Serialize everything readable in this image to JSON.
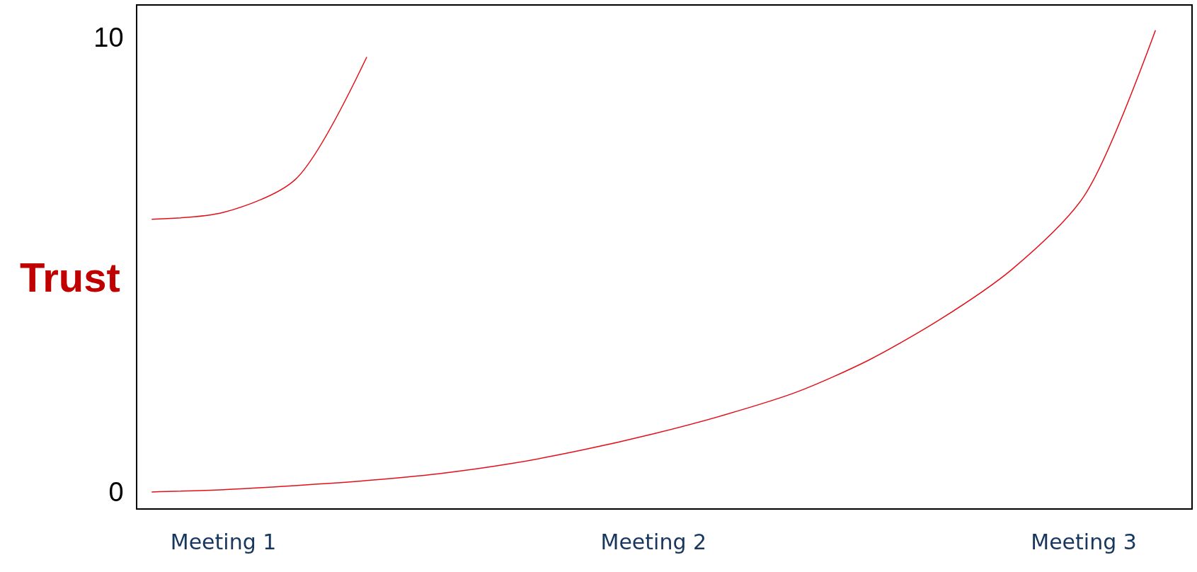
{
  "chart_data": {
    "type": "line",
    "ylabel": "Trust",
    "categories": [
      null,
      "Meeting 1",
      null,
      null,
      null,
      null,
      null,
      "Meeting 2",
      null,
      null,
      null,
      null,
      null,
      "Meeting 3",
      null
    ],
    "series": [
      {
        "color": "#e3101a",
        "values": [
          6.0,
          6.15,
          6.87,
          9.57,
          null,
          null,
          null,
          null,
          null,
          null,
          null,
          null,
          null,
          null,
          null
        ]
      },
      {
        "color": "#e3101a",
        "values": [
          0,
          0.05,
          0.14,
          0.25,
          0.4,
          0.62,
          0.92,
          1.28,
          1.7,
          2.2,
          2.9,
          3.8,
          4.9,
          6.5,
          10.16
        ]
      }
    ],
    "ylim": [
      -0.36,
      10.7
    ],
    "yticks": [
      0,
      10
    ],
    "legend": false,
    "marker": "none",
    "line_style": "solid"
  }
}
